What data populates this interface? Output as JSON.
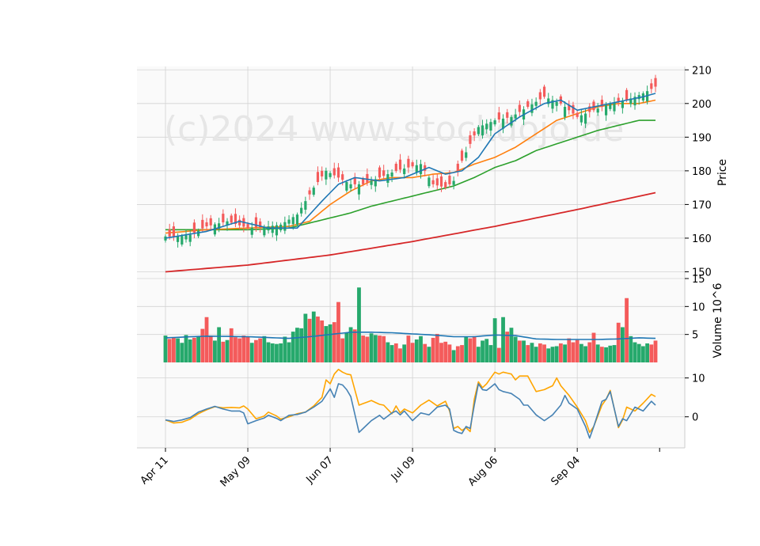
{
  "chart_data": {
    "type": "candlestick",
    "watermark": "(c)2024 www.stockdojo.de",
    "x_tick_labels": [
      "Apr 11",
      "May 09",
      "Jun 07",
      "Jul 09",
      "Aug 06",
      "Sep 04"
    ],
    "x_tick_indices": [
      0,
      20,
      40,
      60,
      80,
      100
    ],
    "n_bars": 120,
    "colors": {
      "up": "#26a96c",
      "down": "#f45b5b",
      "ma1": "#1f77b4",
      "ma2": "#ff7f0e",
      "ma3": "#2ca02c",
      "ma4": "#d62728",
      "vol_ma": "#1f77b4",
      "osc1": "#4682b4",
      "osc2": "#ffa500",
      "panel_bg": "#fafafa",
      "grid": "#d3d3d3"
    },
    "price_panel": {
      "ylabel": "Price",
      "ylim": [
        148,
        211
      ],
      "yticks": [
        150,
        160,
        170,
        180,
        190,
        200,
        210
      ],
      "close_anchors": [
        [
          0,
          160.5
        ],
        [
          3,
          160.5
        ],
        [
          6,
          161
        ],
        [
          10,
          163.5
        ],
        [
          15,
          165
        ],
        [
          20,
          163
        ],
        [
          25,
          163.5
        ],
        [
          28,
          164
        ],
        [
          32,
          167
        ],
        [
          36,
          175
        ],
        [
          39,
          180
        ],
        [
          42,
          178
        ],
        [
          45,
          176
        ],
        [
          48,
          176
        ],
        [
          52,
          178
        ],
        [
          56,
          180
        ],
        [
          59,
          181
        ],
        [
          62,
          182
        ],
        [
          65,
          176
        ],
        [
          68,
          175
        ],
        [
          70,
          177
        ],
        [
          72,
          183
        ],
        [
          76,
          193
        ],
        [
          80,
          195
        ],
        [
          84,
          196
        ],
        [
          88,
          199
        ],
        [
          92,
          202
        ],
        [
          96,
          200
        ],
        [
          100,
          196
        ],
        [
          104,
          198
        ],
        [
          108,
          200
        ],
        [
          112,
          201
        ],
        [
          116,
          203
        ],
        [
          119,
          205
        ]
      ],
      "ma1_anchors": [
        [
          0,
          160
        ],
        [
          10,
          162
        ],
        [
          18,
          165
        ],
        [
          25,
          163
        ],
        [
          32,
          163
        ],
        [
          38,
          171
        ],
        [
          42,
          176
        ],
        [
          46,
          178
        ],
        [
          52,
          177
        ],
        [
          58,
          178
        ],
        [
          64,
          181
        ],
        [
          68,
          179
        ],
        [
          72,
          180
        ],
        [
          76,
          184
        ],
        [
          80,
          191
        ],
        [
          86,
          196
        ],
        [
          92,
          200
        ],
        [
          96,
          201
        ],
        [
          100,
          198
        ],
        [
          104,
          199
        ],
        [
          108,
          200
        ],
        [
          112,
          201
        ],
        [
          116,
          202
        ],
        [
          119,
          203
        ]
      ],
      "ma2_anchors": [
        [
          0,
          161.5
        ],
        [
          10,
          162.5
        ],
        [
          20,
          163
        ],
        [
          30,
          163.5
        ],
        [
          35,
          165
        ],
        [
          40,
          170
        ],
        [
          45,
          174
        ],
        [
          50,
          177
        ],
        [
          55,
          178
        ],
        [
          60,
          178
        ],
        [
          65,
          179
        ],
        [
          70,
          179.5
        ],
        [
          75,
          182
        ],
        [
          80,
          184
        ],
        [
          85,
          187
        ],
        [
          90,
          191
        ],
        [
          95,
          195
        ],
        [
          100,
          197
        ],
        [
          105,
          199
        ],
        [
          110,
          200
        ],
        [
          115,
          200
        ],
        [
          119,
          201
        ]
      ],
      "ma3_anchors": [
        [
          0,
          162.5
        ],
        [
          10,
          162.5
        ],
        [
          20,
          162.5
        ],
        [
          30,
          163
        ],
        [
          35,
          164.5
        ],
        [
          40,
          166
        ],
        [
          45,
          167.5
        ],
        [
          50,
          169.5
        ],
        [
          55,
          171
        ],
        [
          60,
          172.5
        ],
        [
          65,
          174
        ],
        [
          70,
          175.5
        ],
        [
          75,
          178
        ],
        [
          80,
          181
        ],
        [
          85,
          183
        ],
        [
          90,
          186
        ],
        [
          95,
          188
        ],
        [
          100,
          190
        ],
        [
          105,
          192
        ],
        [
          110,
          193.5
        ],
        [
          115,
          195
        ],
        [
          119,
          195
        ]
      ],
      "ma4_anchors": [
        [
          0,
          150
        ],
        [
          20,
          152
        ],
        [
          40,
          155
        ],
        [
          60,
          159
        ],
        [
          80,
          163.5
        ],
        [
          100,
          168.5
        ],
        [
          119,
          173.5
        ]
      ]
    },
    "volume_panel": {
      "ylabel": "Volume  10^6",
      "ylim": [
        0,
        15
      ],
      "yticks": [
        5,
        10,
        15
      ],
      "values": [
        4.8,
        4.2,
        4.5,
        4.3,
        3.5,
        4.9,
        4.1,
        4.4,
        4.6,
        6.0,
        8.1,
        4.8,
        3.9,
        6.3,
        3.7,
        4.0,
        6.1,
        4.5,
        4.3,
        4.8,
        4.6,
        3.5,
        4.0,
        4.3,
        4.7,
        3.6,
        3.4,
        3.3,
        3.4,
        4.6,
        3.6,
        5.5,
        6.2,
        6.1,
        8.7,
        7.8,
        9.1,
        8.2,
        7.5,
        6.5,
        6.8,
        7.2,
        10.8,
        4.3,
        5.3,
        6.3,
        5.9,
        13.4,
        4.8,
        4.6,
        5.2,
        4.9,
        4.8,
        4.7,
        3.6,
        3.1,
        3.4,
        2.5,
        3.2,
        4.8,
        3.5,
        4.1,
        4.7,
        3.3,
        2.8,
        4.4,
        5.1,
        3.5,
        3.7,
        3.2,
        2.2,
        2.9,
        3.1,
        4.6,
        4.3,
        4.7,
        2.8,
        3.9,
        4.2,
        3.1,
        7.9,
        2.6,
        8.1,
        5.5,
        6.2,
        4.6,
        3.9,
        3.9,
        3.1,
        3.5,
        2.8,
        3.4,
        3.2,
        2.5,
        2.8,
        2.9,
        3.4,
        3.2,
        4.3,
        3.6,
        4.0,
        3.3,
        2.9,
        3.6,
        5.3,
        3.2,
        2.8,
        2.7,
        3.0,
        3.1,
        7.1,
        6.3,
        11.5,
        4.7,
        3.6,
        3.3,
        2.9,
        3.4,
        3.2,
        3.9
      ],
      "up_flags": [
        1,
        0,
        0,
        1,
        1,
        1,
        1,
        0,
        1,
        0,
        0,
        0,
        1,
        1,
        0,
        1,
        0,
        0,
        0,
        0,
        0,
        1,
        0,
        0,
        1,
        1,
        1,
        1,
        1,
        1,
        1,
        1,
        1,
        1,
        1,
        0,
        1,
        0,
        0,
        1,
        1,
        0,
        0,
        0,
        1,
        1,
        0,
        1,
        0,
        0,
        1,
        1,
        0,
        0,
        1,
        1,
        0,
        0,
        1,
        0,
        0,
        1,
        1,
        0,
        1,
        0,
        0,
        0,
        0,
        0,
        1,
        0,
        0,
        1,
        0,
        0,
        1,
        1,
        1,
        1,
        1,
        0,
        1,
        0,
        1,
        1,
        0,
        1,
        0,
        1,
        1,
        0,
        0,
        1,
        1,
        1,
        0,
        1,
        0,
        0,
        0,
        1,
        1,
        0,
        0,
        1,
        0,
        1,
        1,
        1,
        0,
        1,
        0,
        1,
        1,
        1,
        1,
        1,
        0,
        0
      ],
      "ma_anchors": [
        [
          0,
          4.4
        ],
        [
          10,
          4.7
        ],
        [
          20,
          4.6
        ],
        [
          30,
          4.3
        ],
        [
          35,
          4.6
        ],
        [
          40,
          5.0
        ],
        [
          45,
          5.4
        ],
        [
          50,
          5.4
        ],
        [
          55,
          5.3
        ],
        [
          60,
          5.1
        ],
        [
          65,
          4.9
        ],
        [
          70,
          4.6
        ],
        [
          75,
          4.6
        ],
        [
          80,
          4.9
        ],
        [
          85,
          4.8
        ],
        [
          90,
          4.2
        ],
        [
          95,
          4.1
        ],
        [
          100,
          4.1
        ],
        [
          105,
          4.1
        ],
        [
          110,
          4.2
        ],
        [
          115,
          4.4
        ],
        [
          119,
          4.3
        ]
      ]
    },
    "oscillator_panel": {
      "ylim": [
        -8,
        14
      ],
      "yticks": [
        0,
        10
      ],
      "line1_anchors": [
        [
          0,
          -0.8
        ],
        [
          2,
          -1.2
        ],
        [
          4,
          -0.8
        ],
        [
          6,
          -0.2
        ],
        [
          8,
          1.2
        ],
        [
          10,
          2.0
        ],
        [
          12,
          2.7
        ],
        [
          14,
          2.0
        ],
        [
          16,
          1.5
        ],
        [
          18,
          1.5
        ],
        [
          19,
          1.0
        ],
        [
          20,
          -1.8
        ],
        [
          22,
          -1.0
        ],
        [
          24,
          -0.3
        ],
        [
          25,
          0.4
        ],
        [
          27,
          -0.4
        ],
        [
          28,
          -1.0
        ],
        [
          30,
          0.4
        ],
        [
          32,
          0.6
        ],
        [
          34,
          1.2
        ],
        [
          36,
          2.5
        ],
        [
          38,
          4.0
        ],
        [
          40,
          7.2
        ],
        [
          41,
          5.0
        ],
        [
          42,
          8.5
        ],
        [
          43,
          8.2
        ],
        [
          44,
          7.0
        ],
        [
          45,
          5.2
        ],
        [
          47,
          -4.0
        ],
        [
          49,
          -2.0
        ],
        [
          50,
          -1.0
        ],
        [
          52,
          0.4
        ],
        [
          53,
          -0.6
        ],
        [
          55,
          1.0
        ],
        [
          56,
          1.5
        ],
        [
          57,
          0.5
        ],
        [
          58,
          1.5
        ],
        [
          60,
          -1.0
        ],
        [
          62,
          1.0
        ],
        [
          64,
          0.5
        ],
        [
          66,
          2.5
        ],
        [
          68,
          3.0
        ],
        [
          69,
          2.0
        ],
        [
          70,
          -3.5
        ],
        [
          71,
          -4.0
        ],
        [
          72,
          -4.3
        ],
        [
          73,
          -2.5
        ],
        [
          74,
          -3.0
        ],
        [
          75,
          3.0
        ],
        [
          76,
          8.5
        ],
        [
          77,
          7.0
        ],
        [
          78,
          6.8
        ],
        [
          80,
          8.5
        ],
        [
          81,
          7.0
        ],
        [
          82,
          6.5
        ],
        [
          84,
          6.0
        ],
        [
          86,
          4.5
        ],
        [
          87,
          3.0
        ],
        [
          88,
          3.0
        ],
        [
          90,
          0.5
        ],
        [
          92,
          -1.0
        ],
        [
          94,
          0.5
        ],
        [
          96,
          3.0
        ],
        [
          97,
          5.5
        ],
        [
          98,
          3.5
        ],
        [
          100,
          2.0
        ],
        [
          102,
          -2.5
        ],
        [
          103,
          -5.5
        ],
        [
          104,
          -2.5
        ],
        [
          106,
          4.0
        ],
        [
          107,
          4.5
        ],
        [
          108,
          6.5
        ],
        [
          110,
          -2.5
        ],
        [
          111,
          -0.5
        ],
        [
          112,
          -1.0
        ],
        [
          114,
          2.5
        ],
        [
          116,
          1.5
        ],
        [
          118,
          4.0
        ],
        [
          119,
          3.0
        ]
      ],
      "line2_anchors": [
        [
          0,
          -0.8
        ],
        [
          2,
          -1.6
        ],
        [
          4,
          -1.4
        ],
        [
          6,
          -0.6
        ],
        [
          8,
          0.8
        ],
        [
          10,
          1.8
        ],
        [
          12,
          2.6
        ],
        [
          14,
          2.3
        ],
        [
          16,
          2.4
        ],
        [
          18,
          2.3
        ],
        [
          19,
          2.8
        ],
        [
          20,
          2.0
        ],
        [
          22,
          -0.5
        ],
        [
          24,
          0.2
        ],
        [
          25,
          1.2
        ],
        [
          27,
          0.2
        ],
        [
          28,
          -0.6
        ],
        [
          30,
          0.0
        ],
        [
          32,
          0.8
        ],
        [
          34,
          1.2
        ],
        [
          36,
          2.8
        ],
        [
          38,
          5.0
        ],
        [
          39,
          9.5
        ],
        [
          40,
          8.5
        ],
        [
          41,
          11.0
        ],
        [
          42,
          12.2
        ],
        [
          43,
          11.5
        ],
        [
          44,
          11.0
        ],
        [
          45,
          10.8
        ],
        [
          47,
          3.0
        ],
        [
          49,
          3.8
        ],
        [
          50,
          4.2
        ],
        [
          52,
          3.2
        ],
        [
          53,
          3.0
        ],
        [
          55,
          0.8
        ],
        [
          56,
          2.8
        ],
        [
          57,
          1.0
        ],
        [
          58,
          2.0
        ],
        [
          60,
          1.0
        ],
        [
          62,
          3.0
        ],
        [
          64,
          4.3
        ],
        [
          66,
          2.8
        ],
        [
          68,
          4.0
        ],
        [
          69,
          1.5
        ],
        [
          70,
          -3.0
        ],
        [
          71,
          -2.5
        ],
        [
          72,
          -3.5
        ],
        [
          73,
          -2.8
        ],
        [
          74,
          -3.8
        ],
        [
          75,
          4.5
        ],
        [
          76,
          9.0
        ],
        [
          77,
          7.5
        ],
        [
          78,
          8.5
        ],
        [
          80,
          11.5
        ],
        [
          81,
          11.0
        ],
        [
          82,
          11.5
        ],
        [
          84,
          11.0
        ],
        [
          85,
          9.5
        ],
        [
          86,
          10.5
        ],
        [
          88,
          10.5
        ],
        [
          90,
          6.5
        ],
        [
          92,
          7.0
        ],
        [
          94,
          8.0
        ],
        [
          95,
          10.0
        ],
        [
          96,
          8.0
        ],
        [
          98,
          5.5
        ],
        [
          100,
          2.5
        ],
        [
          102,
          -1.0
        ],
        [
          103,
          -4.0
        ],
        [
          104,
          -2.5
        ],
        [
          106,
          3.0
        ],
        [
          107,
          4.5
        ],
        [
          108,
          6.8
        ],
        [
          110,
          -2.8
        ],
        [
          111,
          -0.8
        ],
        [
          112,
          2.5
        ],
        [
          114,
          1.5
        ],
        [
          116,
          3.5
        ],
        [
          118,
          5.8
        ],
        [
          119,
          5.2
        ]
      ]
    }
  }
}
